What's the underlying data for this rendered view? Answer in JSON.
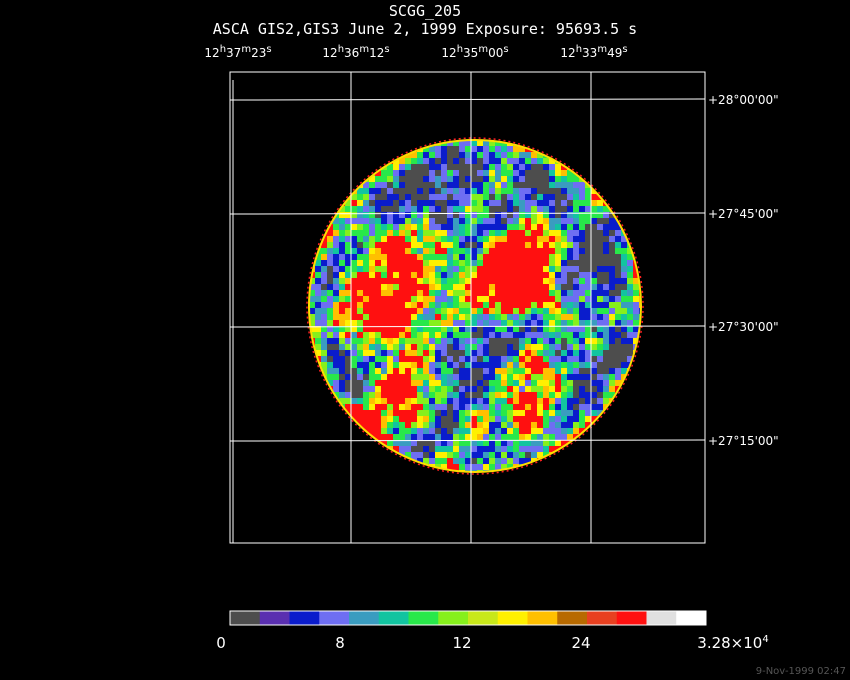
{
  "title": "SCGG_205",
  "subtitle": "ASCA GIS2,GIS3 June 2, 1999 Exposure: 95693.5 s",
  "ra_labels": [
    {
      "h": "12",
      "m": "37",
      "s": "23"
    },
    {
      "h": "12",
      "m": "36",
      "s": "12"
    },
    {
      "h": "12",
      "m": "35",
      "s": "00"
    },
    {
      "h": "12",
      "m": "33",
      "s": "49"
    }
  ],
  "dec_labels": [
    "+28°00'00\"",
    "+27°45'00\"",
    "+27°30'00\"",
    "+27°15'00\""
  ],
  "colorbar": {
    "labels": [
      "0",
      "8",
      "12",
      "24"
    ],
    "max_mantissa": "3.28×10",
    "max_exponent": "4",
    "colors": [
      "#4d4d4d",
      "#5a2fb0",
      "#0a1ccc",
      "#6e6ef2",
      "#3a9cc0",
      "#12c4a0",
      "#28e84a",
      "#86f01c",
      "#c8e81a",
      "#fff000",
      "#ffc000",
      "#b86a00",
      "#e84020",
      "#ff1010",
      "#e0e0e0",
      "#ffffff"
    ]
  },
  "timestamp": "9-Nov-1999 02:47"
}
